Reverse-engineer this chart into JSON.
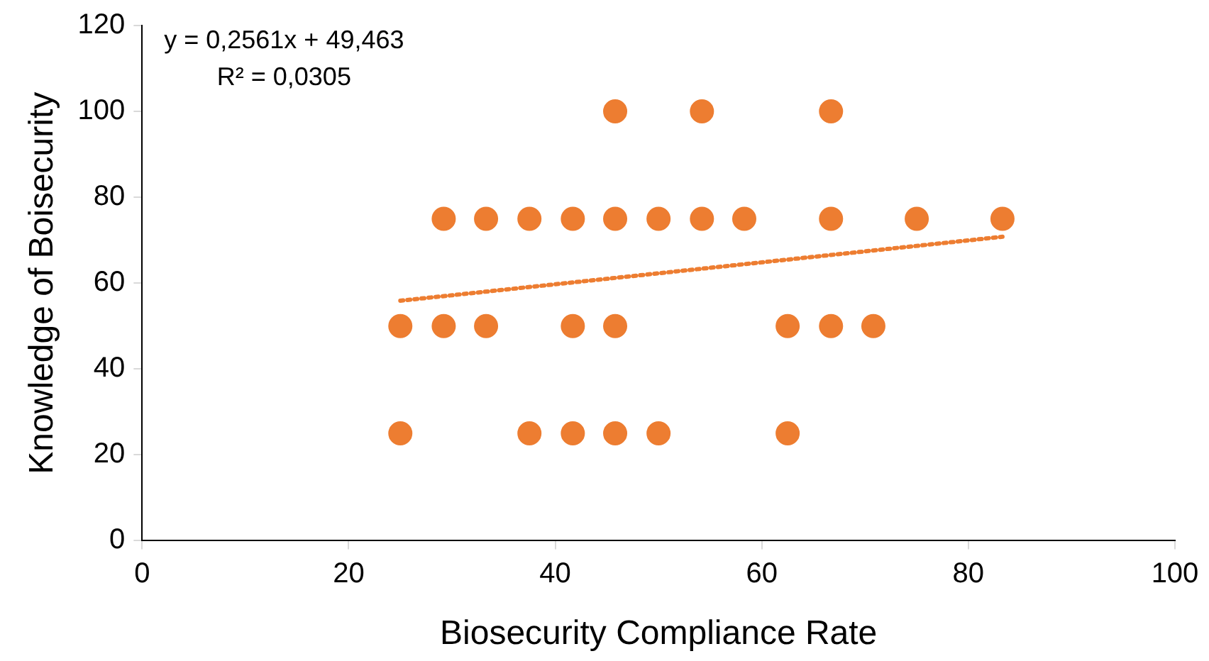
{
  "chart_data": {
    "type": "scatter",
    "xlabel": "Biosecurity Compliance Rate",
    "ylabel": "Knowledge of Boisecurity",
    "xlim": [
      0,
      100
    ],
    "xticks": [
      0,
      20,
      40,
      60,
      80,
      100
    ],
    "ylim": [
      0,
      120
    ],
    "yticks": [
      0,
      20,
      40,
      60,
      80,
      100,
      120
    ],
    "grid": false,
    "legend": false,
    "marker": "circle",
    "annotations": [
      "y = 0,2561x + 49,463",
      "R² = 0,0305"
    ],
    "series": [
      {
        "type": "scatter",
        "color": "#ed7d31",
        "x": [
          45.8,
          54.2,
          66.7,
          29.2,
          33.3,
          37.5,
          41.7,
          45.8,
          50,
          54.2,
          58.3,
          66.7,
          75,
          83.3,
          25,
          29.2,
          33.3,
          41.7,
          45.8,
          62.5,
          66.7,
          70.8,
          25,
          37.5,
          41.7,
          45.8,
          50,
          62.5
        ],
        "values": [
          100,
          100,
          100,
          75,
          75,
          75,
          75,
          75,
          75,
          75,
          75,
          75,
          75,
          75,
          50,
          50,
          50,
          50,
          50,
          50,
          50,
          50,
          25,
          25,
          25,
          25,
          25,
          25
        ]
      },
      {
        "type": "line",
        "color": "#ed7d31",
        "line_style": "dotted",
        "marker": "none",
        "x": [
          25,
          83.3
        ],
        "values": [
          55.9,
          70.8
        ]
      }
    ]
  }
}
